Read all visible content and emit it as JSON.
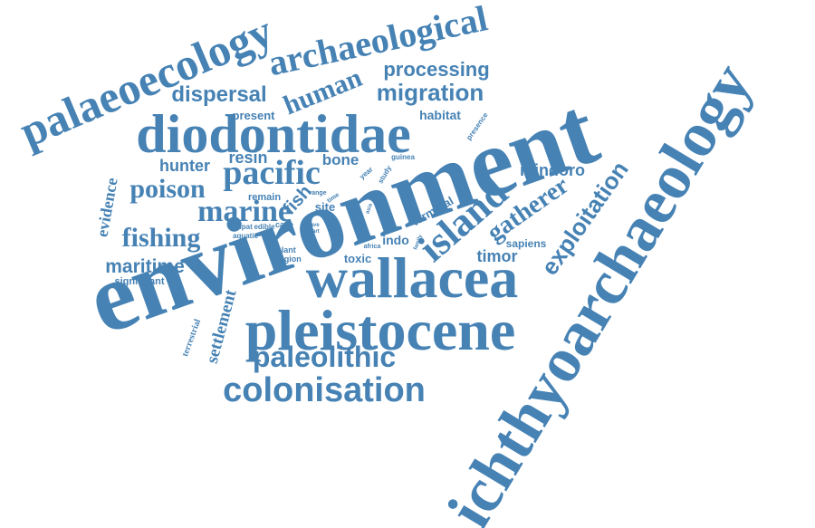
{
  "word_color": "#4682b4",
  "background_color": "#ffffff",
  "words": {
    "environment": "environment",
    "ichthyoarchaeology": "ichthyoarchaeology",
    "wallacea": "wallacea",
    "pleistocene": "pleistocene",
    "diodontidae": "diodontidae",
    "palaeoecology": "palaeoecology",
    "archaeological": "archaeological",
    "island": "island",
    "colonisation": "colonisation",
    "paleolithic": "paleolithic",
    "pacific": "pacific",
    "marine": "marine",
    "exploitation": "exploitation",
    "human": "human",
    "migration": "migration",
    "gatherer": "gatherer",
    "poison": "poison",
    "fishing": "fishing",
    "processing": "processing",
    "dispersal": "dispersal",
    "maritime": "maritime",
    "settlement": "settlement",
    "fish": "fish",
    "evidence": "evidence",
    "hunter": "hunter",
    "timor": "timor",
    "mindoro": "mindoro",
    "resin": "resin",
    "bone": "bone",
    "habitat": "habitat",
    "present": "present",
    "indo": "indo",
    "terminal": "terminal",
    "site": "site",
    "toxic": "toxic",
    "sapiens": "sapiens",
    "remain": "remain",
    "significant": "significant",
    "terrestrial": "terrestrial",
    "presence": "presence",
    "study": "study",
    "year": "year",
    "guinea": "guinea",
    "range": "range",
    "time": "time",
    "case": "case",
    "ampat": "ampat",
    "edible": "edible",
    "aquatic": "aquatic",
    "plant": "plant",
    "region": "region",
    "cave": "cave",
    "part": "part",
    "asia": "asia",
    "africa": "africa",
    "family": "family"
  }
}
